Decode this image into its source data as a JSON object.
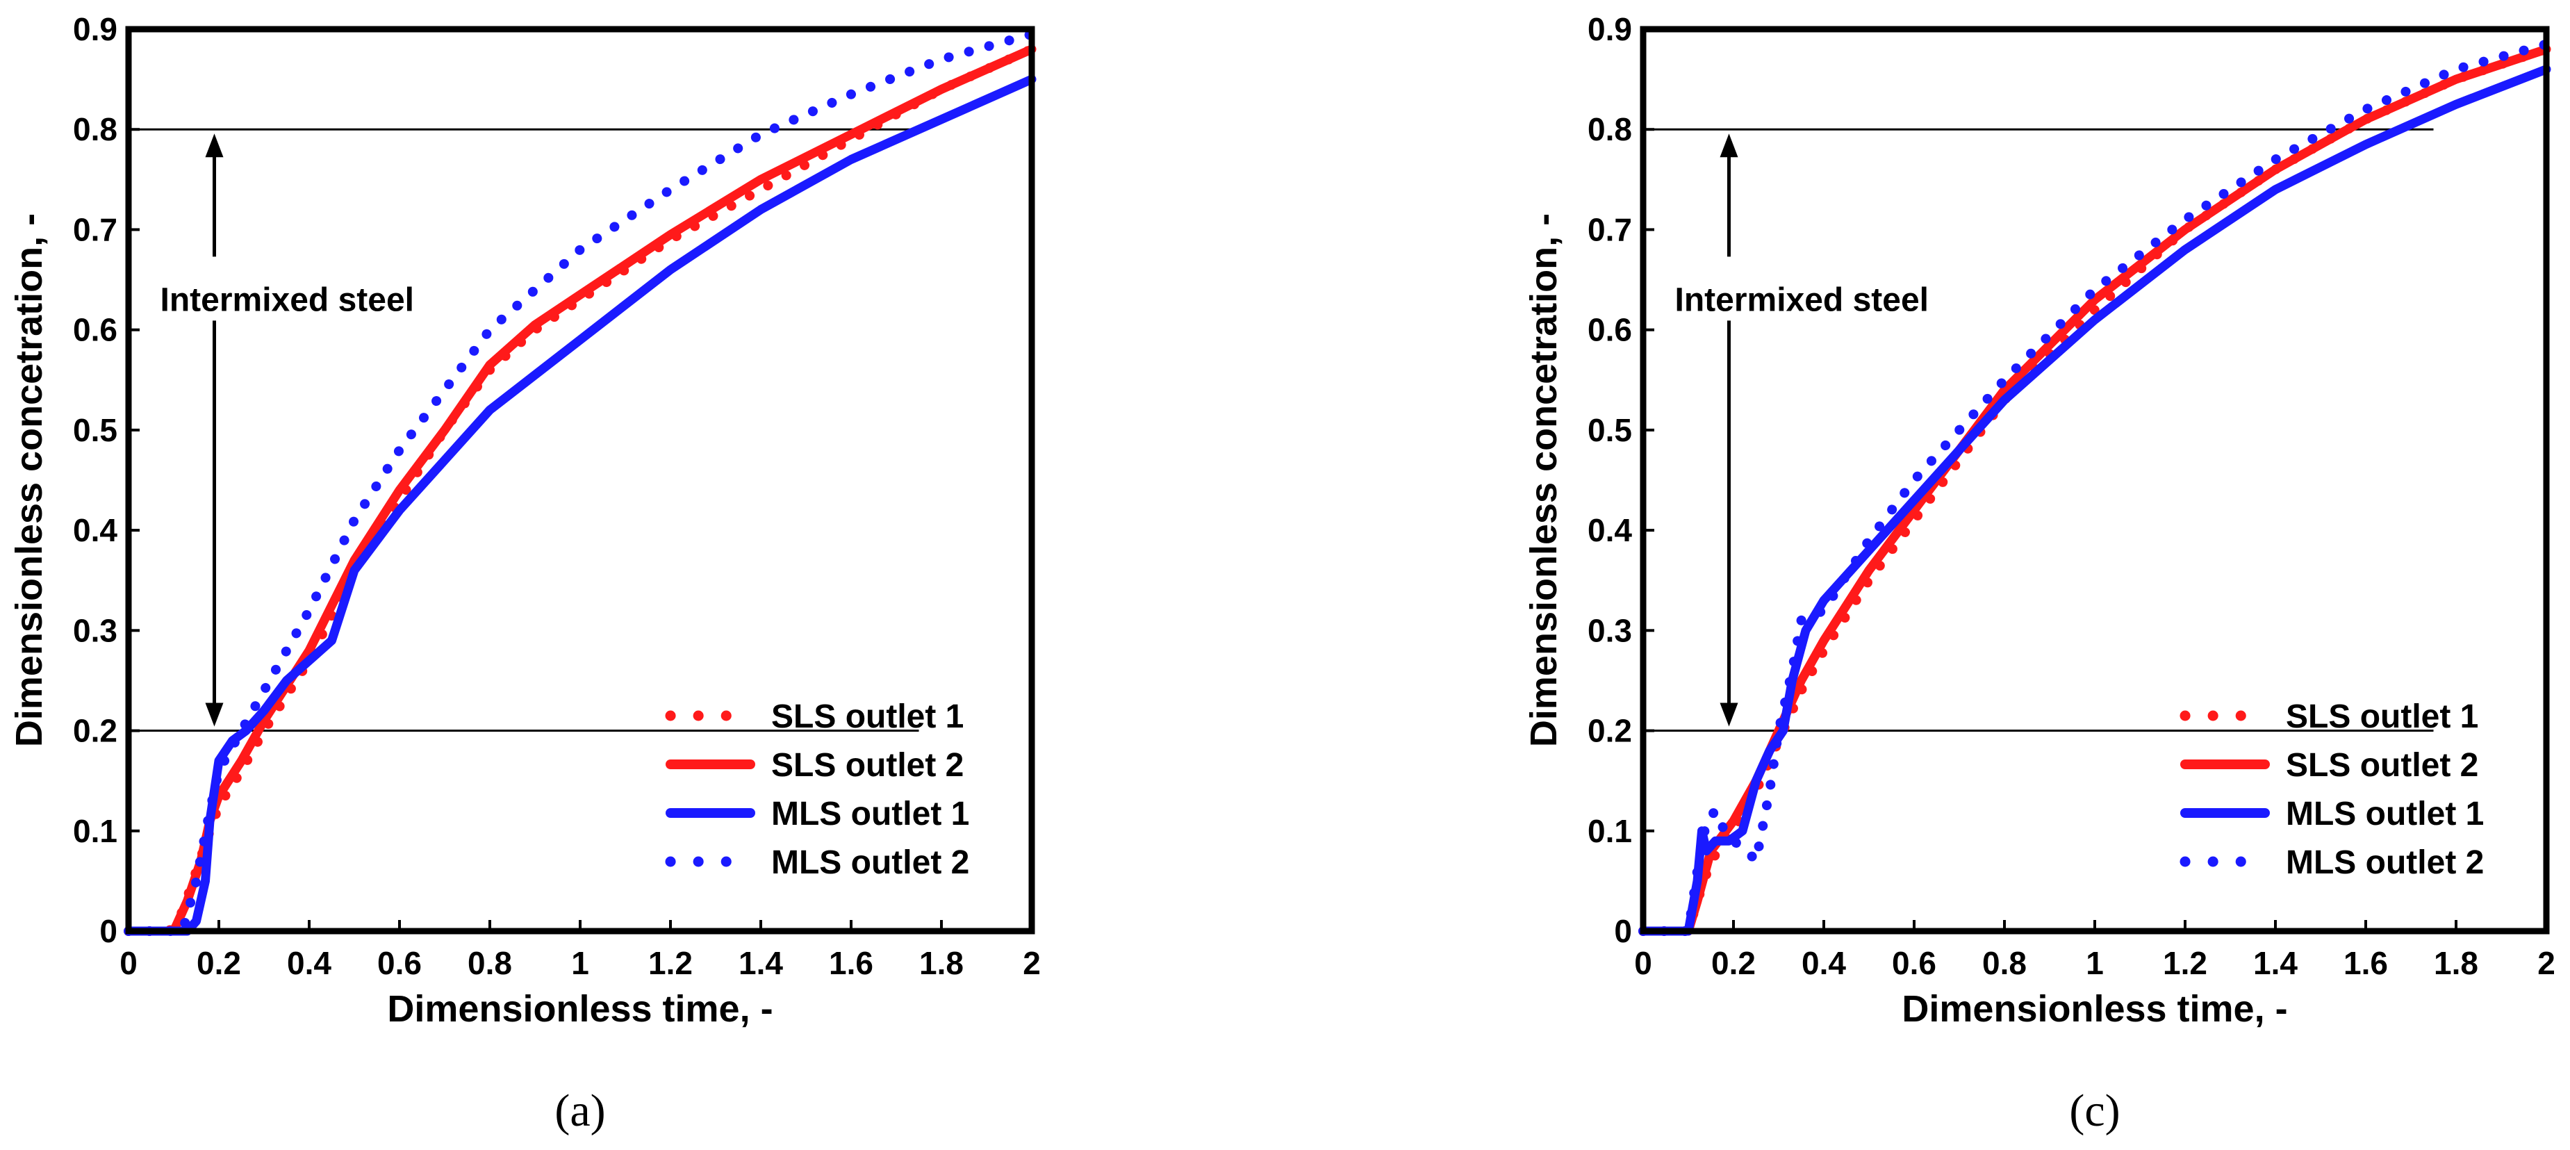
{
  "colors": {
    "red": "#ff1a1a",
    "blue": "#1a1aff",
    "black": "#000000"
  },
  "chart_data": [
    {
      "type": "line",
      "panel_label": "(a)",
      "xlabel": "Dimensionless time, -",
      "ylabel": "Dimensionless concetration, -",
      "xlim": [
        0,
        2
      ],
      "ylim": [
        0,
        0.9
      ],
      "xticks": [
        0,
        0.2,
        0.4,
        0.6,
        0.8,
        1,
        1.2,
        1.4,
        1.6,
        1.8,
        2
      ],
      "xtick_labels": [
        "0",
        "0.2",
        "0.4",
        "0.6",
        "0.8",
        "1",
        "1.2",
        "1.4",
        "1.6",
        "1.8",
        "2"
      ],
      "yticks": [
        0,
        0.1,
        0.2,
        0.3,
        0.4,
        0.5,
        0.6,
        0.7,
        0.8,
        0.9
      ],
      "ytick_labels": [
        "0",
        "0.1",
        "0.2",
        "0.3",
        "0.4",
        "0.5",
        "0.6",
        "0.7",
        "0.8",
        "0.9"
      ],
      "reference_lines": [
        0.2,
        0.8
      ],
      "reference_x_end": 1.75,
      "arrow_x": 0.19,
      "annotation": "Intermixed steel",
      "annotation_pos": {
        "x": 0.07,
        "y": 0.63
      },
      "legend_position": "bottom-right",
      "series": [
        {
          "name": "SLS outlet 1",
          "color": "red",
          "style": "dotted",
          "x": [
            0,
            0.09,
            0.12,
            0.15,
            0.18,
            0.2,
            0.25,
            0.3,
            0.4,
            0.5,
            0.6,
            0.7,
            0.8,
            0.9,
            1.0,
            1.2,
            1.4,
            1.6,
            1.8,
            2.0
          ],
          "y": [
            0,
            0,
            0.02,
            0.06,
            0.1,
            0.125,
            0.16,
            0.2,
            0.27,
            0.36,
            0.43,
            0.5,
            0.56,
            0.6,
            0.63,
            0.69,
            0.74,
            0.79,
            0.84,
            0.88
          ]
        },
        {
          "name": "SLS outlet 2",
          "color": "red",
          "style": "solid",
          "x": [
            0,
            0.1,
            0.13,
            0.16,
            0.18,
            0.2,
            0.25,
            0.3,
            0.4,
            0.5,
            0.6,
            0.7,
            0.8,
            0.9,
            1.0,
            1.2,
            1.4,
            1.6,
            1.8,
            2.0
          ],
          "y": [
            0,
            0,
            0.03,
            0.07,
            0.11,
            0.135,
            0.17,
            0.21,
            0.28,
            0.37,
            0.44,
            0.5,
            0.565,
            0.605,
            0.635,
            0.695,
            0.75,
            0.795,
            0.84,
            0.88
          ]
        },
        {
          "name": "MLS outlet 1",
          "color": "blue",
          "style": "solid",
          "x": [
            0,
            0.13,
            0.15,
            0.17,
            0.18,
            0.2,
            0.23,
            0.26,
            0.3,
            0.35,
            0.4,
            0.45,
            0.5,
            0.6,
            0.7,
            0.8,
            1.0,
            1.2,
            1.4,
            1.6,
            1.8,
            2.0
          ],
          "y": [
            0,
            0,
            0.01,
            0.05,
            0.11,
            0.17,
            0.19,
            0.2,
            0.22,
            0.25,
            0.27,
            0.29,
            0.36,
            0.42,
            0.47,
            0.52,
            0.59,
            0.66,
            0.72,
            0.77,
            0.81,
            0.85
          ]
        },
        {
          "name": "MLS outlet 2",
          "color": "blue",
          "style": "dotted",
          "x": [
            0,
            0.12,
            0.15,
            0.18,
            0.2,
            0.25,
            0.3,
            0.4,
            0.5,
            0.6,
            0.7,
            0.8,
            0.9,
            1.0,
            1.2,
            1.4,
            1.6,
            1.8,
            2.0
          ],
          "y": [
            0,
            0,
            0.05,
            0.12,
            0.16,
            0.2,
            0.24,
            0.32,
            0.41,
            0.48,
            0.54,
            0.6,
            0.64,
            0.68,
            0.74,
            0.795,
            0.835,
            0.87,
            0.895
          ]
        }
      ]
    },
    {
      "type": "line",
      "panel_label": "(c)",
      "xlabel": "Dimensionless time, -",
      "ylabel": "Dimensionless concetration, -",
      "xlim": [
        0,
        2
      ],
      "ylim": [
        0,
        0.9
      ],
      "xticks": [
        0,
        0.2,
        0.4,
        0.6,
        0.8,
        1,
        1.2,
        1.4,
        1.6,
        1.8,
        2
      ],
      "xtick_labels": [
        "0",
        "0.2",
        "0.4",
        "0.6",
        "0.8",
        "1",
        "1.2",
        "1.4",
        "1.6",
        "1.8",
        "2"
      ],
      "yticks": [
        0,
        0.1,
        0.2,
        0.3,
        0.4,
        0.5,
        0.6,
        0.7,
        0.8,
        0.9
      ],
      "ytick_labels": [
        "0",
        "0.1",
        "0.2",
        "0.3",
        "0.4",
        "0.5",
        "0.6",
        "0.7",
        "0.8",
        "0.9"
      ],
      "reference_lines": [
        0.2,
        0.8
      ],
      "reference_x_end": 1.75,
      "arrow_x": 0.19,
      "annotation": "Intermixed steel",
      "annotation_pos": {
        "x": 0.07,
        "y": 0.63
      },
      "legend_position": "bottom-right",
      "series": [
        {
          "name": "SLS outlet 1",
          "color": "red",
          "style": "dotted",
          "x": [
            0,
            0.1,
            0.12,
            0.15,
            0.2,
            0.25,
            0.3,
            0.35,
            0.4,
            0.5,
            0.6,
            0.7,
            0.8,
            1.0,
            1.2,
            1.4,
            1.6,
            1.8,
            2.0
          ],
          "y": [
            0,
            0,
            0.03,
            0.07,
            0.1,
            0.14,
            0.19,
            0.24,
            0.28,
            0.35,
            0.41,
            0.47,
            0.53,
            0.62,
            0.7,
            0.76,
            0.81,
            0.85,
            0.88
          ]
        },
        {
          "name": "SLS outlet 2",
          "color": "red",
          "style": "solid",
          "x": [
            0,
            0.1,
            0.12,
            0.15,
            0.2,
            0.25,
            0.3,
            0.35,
            0.4,
            0.5,
            0.6,
            0.7,
            0.8,
            1.0,
            1.2,
            1.4,
            1.6,
            1.8,
            2.0
          ],
          "y": [
            0,
            0,
            0.03,
            0.08,
            0.11,
            0.15,
            0.2,
            0.25,
            0.29,
            0.36,
            0.42,
            0.48,
            0.54,
            0.63,
            0.7,
            0.76,
            0.81,
            0.85,
            0.88
          ]
        },
        {
          "name": "MLS outlet 1",
          "color": "blue",
          "style": "solid",
          "x": [
            0,
            0.1,
            0.12,
            0.13,
            0.14,
            0.16,
            0.19,
            0.22,
            0.25,
            0.28,
            0.31,
            0.33,
            0.36,
            0.4,
            0.5,
            0.6,
            0.7,
            0.8,
            1.0,
            1.2,
            1.4,
            1.6,
            1.8,
            2.0
          ],
          "y": [
            0,
            0,
            0.05,
            0.1,
            0.08,
            0.09,
            0.09,
            0.1,
            0.15,
            0.18,
            0.2,
            0.25,
            0.3,
            0.33,
            0.38,
            0.43,
            0.48,
            0.53,
            0.61,
            0.68,
            0.74,
            0.785,
            0.825,
            0.86
          ]
        },
        {
          "name": "MLS outlet 2",
          "color": "blue",
          "style": "dotted",
          "x": [
            0,
            0.1,
            0.12,
            0.14,
            0.16,
            0.18,
            0.2,
            0.23,
            0.25,
            0.28,
            0.3,
            0.33,
            0.35,
            0.4,
            0.5,
            0.6,
            0.7,
            0.8,
            1.0,
            1.2,
            1.4,
            1.6,
            1.8,
            2.0
          ],
          "y": [
            0,
            0,
            0.06,
            0.11,
            0.12,
            0.1,
            0.09,
            0.08,
            0.07,
            0.14,
            0.2,
            0.26,
            0.31,
            0.32,
            0.39,
            0.45,
            0.5,
            0.55,
            0.64,
            0.71,
            0.77,
            0.82,
            0.86,
            0.885
          ]
        }
      ]
    }
  ]
}
